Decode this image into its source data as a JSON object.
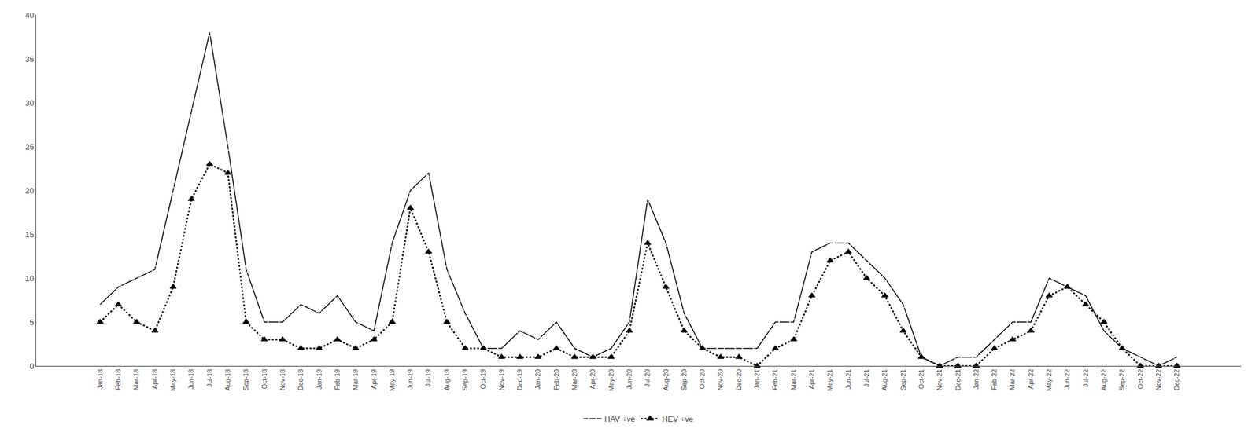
{
  "chart_data": {
    "type": "line",
    "categories": [
      "Jan-18",
      "Feb-18",
      "Mar-18",
      "Apr-18",
      "May-18",
      "Jun-18",
      "Jul-18",
      "Aug-18",
      "Sep-18",
      "Oct-18",
      "Nov-18",
      "Dec-18",
      "Jan-19",
      "Feb-19",
      "Mar-19",
      "Apr-19",
      "May-19",
      "Jun-19",
      "Jul-19",
      "Aug-19",
      "Sep-19",
      "Oct-19",
      "Nov-19",
      "Dec-19",
      "Jan-20",
      "Feb-20",
      "Mar-20",
      "Apr-20",
      "May-20",
      "Jun-20",
      "Jul-20",
      "Aug-20",
      "Sep-20",
      "Oct-20",
      "Nov-20",
      "Dec-20",
      "Jan-21",
      "Feb-21",
      "Mar-21",
      "Apr-21",
      "May-21",
      "Jun-21",
      "Jul-21",
      "Aug-21",
      "Sep-21",
      "Oct-21",
      "Nov-21",
      "Dec-21",
      "Jan-22",
      "Feb-22",
      "Mar-22",
      "Apr-22",
      "May-22",
      "Jun-22",
      "Jul-22",
      "Aug-22",
      "Sep-22",
      "Oct-22",
      "Nov-22",
      "Dec-22"
    ],
    "series": [
      {
        "name": "HAV +ve",
        "color": "#000000",
        "marker": "diamond-open",
        "line_style": "solid",
        "values": [
          7,
          9,
          10,
          11,
          20,
          29,
          38,
          25,
          11,
          5,
          5,
          7,
          6,
          8,
          5,
          4,
          14,
          20,
          22,
          11,
          6,
          2,
          2,
          4,
          3,
          5,
          2,
          1,
          2,
          5,
          19,
          14,
          6,
          2,
          2,
          2,
          2,
          5,
          5,
          13,
          14,
          14,
          12,
          10,
          7,
          1,
          0,
          1,
          1,
          3,
          5,
          5,
          10,
          9,
          8,
          4,
          2,
          1,
          0,
          1
        ]
      },
      {
        "name": "HEV +ve",
        "color": "#000000",
        "marker": "triangle",
        "line_style": "dotted",
        "values": [
          5,
          7,
          5,
          4,
          9,
          19,
          23,
          22,
          5,
          3,
          3,
          2,
          2,
          3,
          2,
          3,
          5,
          18,
          13,
          5,
          2,
          2,
          1,
          1,
          1,
          2,
          1,
          1,
          1,
          4,
          14,
          9,
          4,
          2,
          1,
          1,
          0,
          2,
          3,
          8,
          12,
          13,
          10,
          8,
          4,
          1,
          0,
          0,
          0,
          2,
          3,
          4,
          8,
          9,
          7,
          5,
          2,
          0,
          0,
          0
        ]
      }
    ],
    "ylim": [
      0,
      40
    ],
    "yticks": [
      0,
      5,
      10,
      15,
      20,
      25,
      30,
      35,
      40
    ],
    "grid": false,
    "legend": "bottom"
  }
}
